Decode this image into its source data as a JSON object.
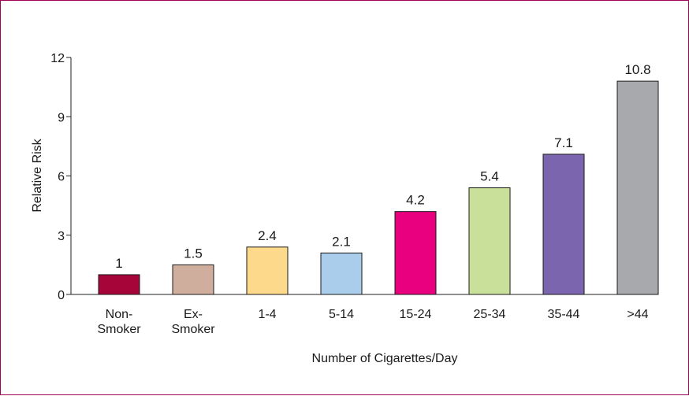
{
  "chart_data": {
    "type": "bar",
    "categories": [
      [
        "Non-",
        "Smoker"
      ],
      [
        "Ex-",
        "Smoker"
      ],
      [
        "1-4"
      ],
      [
        "5-14"
      ],
      [
        "15-24"
      ],
      [
        "25-34"
      ],
      [
        "35-44"
      ],
      [
        ">44"
      ]
    ],
    "values": [
      1,
      1.5,
      2.4,
      2.1,
      4.2,
      5.4,
      7.1,
      10.8
    ],
    "value_labels": [
      "1",
      "1.5",
      "2.4",
      "2.1",
      "4.2",
      "5.4",
      "7.1",
      "10.8"
    ],
    "colors": [
      "#a6053a",
      "#cfae9e",
      "#fdd98b",
      "#a9cdea",
      "#e8007f",
      "#c9e09a",
      "#7b65ae",
      "#a7a9ac"
    ],
    "xlabel": "Number of Cigarettes/Day",
    "ylabel": "Relative Risk",
    "ylim": [
      0,
      12
    ],
    "yticks": [
      0,
      3,
      6,
      9,
      12
    ],
    "grid": false
  }
}
